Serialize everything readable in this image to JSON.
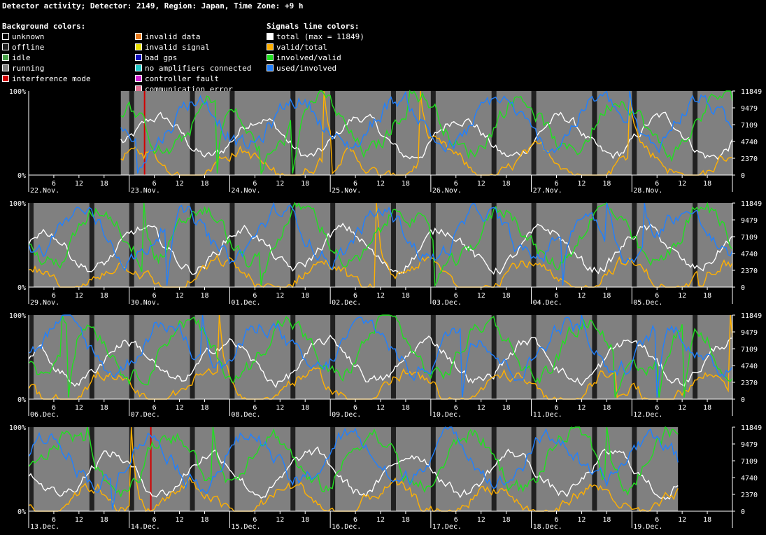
{
  "title": "Detector activity; Detector: 2149, Region: Japan, Time Zone: +9 h",
  "legend": {
    "background_title": "Background colors:",
    "signals_title": "Signals line colors:",
    "background_col1": [
      {
        "label": "unknown",
        "color": "#000000"
      },
      {
        "label": "offline",
        "color": "#202020"
      },
      {
        "label": "idle",
        "color": "#46a046"
      },
      {
        "label": "running",
        "color": "#808080"
      },
      {
        "label": "interference mode",
        "color": "#d20000"
      }
    ],
    "background_col2": [
      {
        "label": "invalid data",
        "color": "#e87a1e"
      },
      {
        "label": "invalid signal",
        "color": "#e8e000"
      },
      {
        "label": "bad gps",
        "color": "#1010c0"
      },
      {
        "label": "no amplifiers connected",
        "color": "#20c8c8"
      },
      {
        "label": "controller fault",
        "color": "#d020d0"
      },
      {
        "label": "communication error",
        "color": "#e07090"
      }
    ],
    "signals": [
      {
        "label": "total (max = 11849)",
        "color": "#ffffff"
      },
      {
        "label": "valid/total",
        "color": "#ffb000"
      },
      {
        "label": "involved/valid",
        "color": "#20e020"
      },
      {
        "label": "used/involved",
        "color": "#2080ff"
      }
    ]
  },
  "chart_data": {
    "type": "line",
    "max_total": 11849,
    "left_axis": {
      "labels": [
        "100%",
        "0%"
      ]
    },
    "right_axis": {
      "ticks": [
        11849,
        9479,
        7109,
        4740,
        2370,
        0
      ],
      "tick_labels": [
        "11849",
        "9479",
        "7109",
        "4740",
        "2370",
        "0"
      ]
    },
    "hour_tick_labels": [
      "6",
      "12",
      "18"
    ],
    "colors": {
      "running": "#808080",
      "offline": "#202020",
      "unknown": "#000000",
      "interference": "#d20000",
      "total": "#ffffff",
      "valid_total": "#ffb000",
      "involved_valid": "#20e020",
      "used_involved": "#2080ff"
    },
    "panels": [
      {
        "days": [
          "22.Nov.",
          "23.Nov.",
          "24.Nov.",
          "25.Nov.",
          "26.Nov.",
          "27.Nov.",
          "28.Nov."
        ],
        "data_start_hours": 22,
        "data_end_hours": 168,
        "interference_hours": [
          27.5
        ]
      },
      {
        "days": [
          "29.Nov.",
          "30.Nov.",
          "01.Dec.",
          "02.Dec.",
          "03.Dec.",
          "04.Dec.",
          "05.Dec."
        ],
        "data_start_hours": 0,
        "data_end_hours": 168,
        "interference_hours": []
      },
      {
        "days": [
          "06.Dec.",
          "07.Dec.",
          "08.Dec.",
          "09.Dec.",
          "10.Dec.",
          "11.Dec.",
          "12.Dec."
        ],
        "data_start_hours": 0,
        "data_end_hours": 168,
        "interference_hours": []
      },
      {
        "days": [
          "13.Dec.",
          "14.Dec.",
          "15.Dec.",
          "16.Dec.",
          "17.Dec.",
          "18.Dec.",
          "19.Dec."
        ],
        "data_start_hours": 0,
        "data_end_hours": 155,
        "interference_hours": [
          29
        ]
      }
    ]
  }
}
